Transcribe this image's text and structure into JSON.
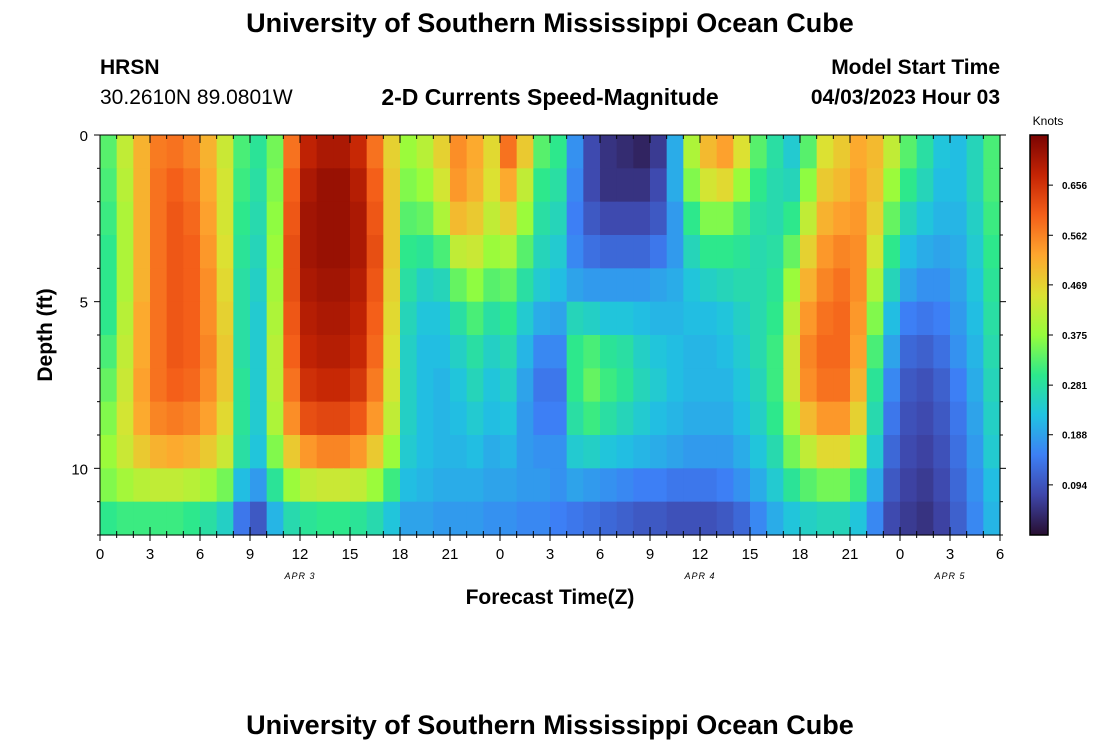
{
  "page": {
    "title": "University of Southern Mississippi Ocean Cube",
    "footer_title": "University of Southern Mississippi Ocean Cube"
  },
  "header": {
    "station": "HRSN",
    "coords": "30.2610N  89.0801W",
    "subtitle": "2-D Currents Speed-Magnitude",
    "model_label": "Model Start Time",
    "model_time": "04/03/2023 Hour 03"
  },
  "chart_data": {
    "type": "heatmap",
    "title": "2-D Currents Speed-Magnitude",
    "xlabel": "Forecast Time(Z)",
    "ylabel": "Depth (ft)",
    "x_range_hours": [
      0,
      54
    ],
    "y_range_ft": [
      0,
      12
    ],
    "x_ticks": [
      {
        "h": 0,
        "label": "0"
      },
      {
        "h": 3,
        "label": "3"
      },
      {
        "h": 6,
        "label": "6"
      },
      {
        "h": 9,
        "label": "9"
      },
      {
        "h": 12,
        "label": "12"
      },
      {
        "h": 15,
        "label": "15"
      },
      {
        "h": 18,
        "label": "18"
      },
      {
        "h": 21,
        "label": "21"
      },
      {
        "h": 24,
        "label": "0"
      },
      {
        "h": 27,
        "label": "3"
      },
      {
        "h": 30,
        "label": "6"
      },
      {
        "h": 33,
        "label": "9"
      },
      {
        "h": 36,
        "label": "12"
      },
      {
        "h": 39,
        "label": "15"
      },
      {
        "h": 42,
        "label": "18"
      },
      {
        "h": 45,
        "label": "21"
      },
      {
        "h": 48,
        "label": "0"
      },
      {
        "h": 51,
        "label": "3"
      },
      {
        "h": 54,
        "label": "6"
      }
    ],
    "y_ticks": [
      {
        "ft": 0,
        "label": "0"
      },
      {
        "ft": 5,
        "label": "5"
      },
      {
        "ft": 10,
        "label": "10"
      }
    ],
    "date_labels": [
      {
        "h": 12,
        "label": "APR 3"
      },
      {
        "h": 36,
        "label": "APR 4"
      },
      {
        "h": 51,
        "label": "APR 5"
      }
    ],
    "colorbar": {
      "unit": "Knots",
      "min": 0.0,
      "max": 0.75,
      "ticks": [
        0.656,
        0.562,
        0.469,
        0.375,
        0.281,
        0.188,
        0.094
      ]
    },
    "time_bins_hours": [
      0.5,
      1.5,
      2.5,
      3.5,
      4.5,
      5.5,
      6.5,
      7.5,
      8.5,
      9.5,
      10.5,
      11.5,
      12.5,
      13.5,
      14.5,
      15.5,
      16.5,
      17.5,
      18.5,
      19.5,
      20.5,
      21.5,
      22.5,
      23.5,
      24.5,
      25.5,
      26.5,
      27.5,
      28.5,
      29.5,
      30.5,
      31.5,
      32.5,
      33.5,
      34.5,
      35.5,
      36.5,
      37.5,
      38.5,
      39.5,
      40.5,
      41.5,
      42.5,
      43.5,
      44.5,
      45.5,
      46.5,
      47.5,
      48.5,
      49.5,
      50.5,
      51.5,
      52.5,
      53.5
    ],
    "depth_bins_ft": [
      0.5,
      1.5,
      2.5,
      3.5,
      4.5,
      5.5,
      6.5,
      7.5,
      8.5,
      9.5,
      10.5,
      11.5
    ],
    "speed_knots": [
      [
        0.33,
        0.42,
        0.51,
        0.57,
        0.58,
        0.56,
        0.51,
        0.43,
        0.32,
        0.29,
        0.35,
        0.58,
        0.68,
        0.7,
        0.7,
        0.67,
        0.58,
        0.47,
        0.38,
        0.41,
        0.47,
        0.55,
        0.52,
        0.46,
        0.58,
        0.48,
        0.33,
        0.3,
        0.17,
        0.08,
        0.05,
        0.04,
        0.03,
        0.06,
        0.2,
        0.4,
        0.5,
        0.53,
        0.45,
        0.33,
        0.28,
        0.24,
        0.33,
        0.45,
        0.48,
        0.52,
        0.5,
        0.42,
        0.33,
        0.28,
        0.23,
        0.22,
        0.26,
        0.32
      ],
      [
        0.32,
        0.41,
        0.51,
        0.58,
        0.6,
        0.58,
        0.52,
        0.44,
        0.31,
        0.28,
        0.36,
        0.6,
        0.7,
        0.72,
        0.72,
        0.69,
        0.6,
        0.48,
        0.36,
        0.38,
        0.44,
        0.54,
        0.51,
        0.45,
        0.52,
        0.42,
        0.3,
        0.28,
        0.16,
        0.08,
        0.05,
        0.05,
        0.05,
        0.08,
        0.2,
        0.36,
        0.44,
        0.46,
        0.38,
        0.3,
        0.27,
        0.26,
        0.37,
        0.48,
        0.5,
        0.53,
        0.49,
        0.38,
        0.3,
        0.26,
        0.22,
        0.22,
        0.26,
        0.32
      ],
      [
        0.31,
        0.4,
        0.51,
        0.58,
        0.61,
        0.59,
        0.53,
        0.44,
        0.3,
        0.27,
        0.37,
        0.61,
        0.71,
        0.72,
        0.72,
        0.7,
        0.61,
        0.48,
        0.33,
        0.34,
        0.4,
        0.5,
        0.48,
        0.42,
        0.47,
        0.38,
        0.28,
        0.26,
        0.15,
        0.1,
        0.08,
        0.08,
        0.08,
        0.1,
        0.18,
        0.3,
        0.36,
        0.36,
        0.32,
        0.28,
        0.27,
        0.3,
        0.42,
        0.51,
        0.53,
        0.54,
        0.47,
        0.34,
        0.26,
        0.23,
        0.21,
        0.21,
        0.25,
        0.31
      ],
      [
        0.3,
        0.4,
        0.51,
        0.58,
        0.61,
        0.6,
        0.54,
        0.45,
        0.29,
        0.26,
        0.38,
        0.62,
        0.71,
        0.72,
        0.72,
        0.7,
        0.62,
        0.48,
        0.3,
        0.29,
        0.32,
        0.42,
        0.43,
        0.38,
        0.4,
        0.33,
        0.26,
        0.24,
        0.16,
        0.13,
        0.12,
        0.12,
        0.12,
        0.14,
        0.18,
        0.26,
        0.3,
        0.3,
        0.29,
        0.27,
        0.28,
        0.34,
        0.47,
        0.54,
        0.56,
        0.55,
        0.44,
        0.3,
        0.22,
        0.2,
        0.19,
        0.2,
        0.24,
        0.3
      ],
      [
        0.3,
        0.4,
        0.51,
        0.58,
        0.61,
        0.6,
        0.55,
        0.46,
        0.28,
        0.25,
        0.39,
        0.62,
        0.7,
        0.71,
        0.71,
        0.69,
        0.61,
        0.47,
        0.28,
        0.25,
        0.26,
        0.34,
        0.37,
        0.33,
        0.34,
        0.28,
        0.24,
        0.22,
        0.19,
        0.18,
        0.18,
        0.18,
        0.18,
        0.19,
        0.2,
        0.23,
        0.25,
        0.26,
        0.27,
        0.27,
        0.29,
        0.38,
        0.51,
        0.56,
        0.58,
        0.55,
        0.4,
        0.26,
        0.19,
        0.17,
        0.17,
        0.19,
        0.23,
        0.29
      ],
      [
        0.3,
        0.41,
        0.52,
        0.58,
        0.61,
        0.6,
        0.55,
        0.47,
        0.28,
        0.24,
        0.4,
        0.61,
        0.69,
        0.7,
        0.7,
        0.68,
        0.6,
        0.46,
        0.26,
        0.23,
        0.23,
        0.28,
        0.32,
        0.28,
        0.3,
        0.24,
        0.2,
        0.19,
        0.26,
        0.25,
        0.23,
        0.23,
        0.22,
        0.21,
        0.21,
        0.22,
        0.22,
        0.23,
        0.25,
        0.27,
        0.3,
        0.41,
        0.54,
        0.58,
        0.59,
        0.54,
        0.36,
        0.22,
        0.15,
        0.14,
        0.15,
        0.18,
        0.22,
        0.28
      ],
      [
        0.32,
        0.42,
        0.52,
        0.58,
        0.61,
        0.6,
        0.56,
        0.48,
        0.28,
        0.24,
        0.41,
        0.6,
        0.68,
        0.69,
        0.69,
        0.67,
        0.59,
        0.45,
        0.25,
        0.22,
        0.22,
        0.25,
        0.28,
        0.25,
        0.27,
        0.21,
        0.16,
        0.16,
        0.3,
        0.32,
        0.29,
        0.28,
        0.25,
        0.23,
        0.22,
        0.21,
        0.21,
        0.22,
        0.24,
        0.27,
        0.31,
        0.43,
        0.56,
        0.59,
        0.59,
        0.53,
        0.32,
        0.19,
        0.12,
        0.11,
        0.13,
        0.17,
        0.21,
        0.27
      ],
      [
        0.34,
        0.43,
        0.53,
        0.58,
        0.6,
        0.59,
        0.55,
        0.48,
        0.29,
        0.24,
        0.41,
        0.58,
        0.66,
        0.67,
        0.67,
        0.65,
        0.57,
        0.44,
        0.25,
        0.22,
        0.21,
        0.23,
        0.26,
        0.23,
        0.25,
        0.19,
        0.14,
        0.14,
        0.3,
        0.34,
        0.31,
        0.29,
        0.26,
        0.24,
        0.22,
        0.21,
        0.21,
        0.21,
        0.23,
        0.26,
        0.31,
        0.43,
        0.55,
        0.58,
        0.58,
        0.51,
        0.29,
        0.16,
        0.1,
        0.09,
        0.11,
        0.15,
        0.2,
        0.26
      ],
      [
        0.36,
        0.44,
        0.52,
        0.56,
        0.57,
        0.56,
        0.53,
        0.46,
        0.29,
        0.24,
        0.4,
        0.55,
        0.62,
        0.63,
        0.63,
        0.61,
        0.54,
        0.42,
        0.25,
        0.22,
        0.21,
        0.22,
        0.24,
        0.22,
        0.23,
        0.18,
        0.15,
        0.15,
        0.28,
        0.31,
        0.28,
        0.26,
        0.24,
        0.22,
        0.21,
        0.2,
        0.2,
        0.2,
        0.22,
        0.25,
        0.3,
        0.4,
        0.5,
        0.54,
        0.54,
        0.47,
        0.27,
        0.14,
        0.09,
        0.08,
        0.1,
        0.14,
        0.19,
        0.25
      ],
      [
        0.38,
        0.43,
        0.48,
        0.51,
        0.52,
        0.51,
        0.48,
        0.43,
        0.28,
        0.23,
        0.36,
        0.48,
        0.54,
        0.56,
        0.56,
        0.54,
        0.48,
        0.38,
        0.24,
        0.22,
        0.21,
        0.21,
        0.22,
        0.2,
        0.21,
        0.18,
        0.17,
        0.17,
        0.24,
        0.25,
        0.23,
        0.22,
        0.21,
        0.2,
        0.19,
        0.18,
        0.18,
        0.18,
        0.2,
        0.23,
        0.27,
        0.35,
        0.42,
        0.46,
        0.46,
        0.4,
        0.24,
        0.12,
        0.08,
        0.07,
        0.09,
        0.13,
        0.18,
        0.24
      ],
      [
        0.36,
        0.39,
        0.41,
        0.42,
        0.42,
        0.41,
        0.39,
        0.35,
        0.22,
        0.18,
        0.29,
        0.38,
        0.42,
        0.43,
        0.43,
        0.42,
        0.38,
        0.31,
        0.22,
        0.21,
        0.2,
        0.2,
        0.2,
        0.19,
        0.19,
        0.18,
        0.18,
        0.17,
        0.19,
        0.18,
        0.17,
        0.16,
        0.15,
        0.15,
        0.14,
        0.14,
        0.14,
        0.15,
        0.17,
        0.2,
        0.24,
        0.29,
        0.33,
        0.35,
        0.35,
        0.31,
        0.2,
        0.1,
        0.07,
        0.06,
        0.08,
        0.12,
        0.17,
        0.22
      ],
      [
        0.3,
        0.31,
        0.31,
        0.31,
        0.31,
        0.3,
        0.28,
        0.25,
        0.14,
        0.1,
        0.21,
        0.27,
        0.29,
        0.3,
        0.3,
        0.29,
        0.27,
        0.23,
        0.19,
        0.19,
        0.18,
        0.18,
        0.18,
        0.17,
        0.17,
        0.16,
        0.16,
        0.15,
        0.14,
        0.13,
        0.12,
        0.11,
        0.1,
        0.1,
        0.09,
        0.09,
        0.09,
        0.1,
        0.12,
        0.16,
        0.2,
        0.23,
        0.25,
        0.26,
        0.26,
        0.23,
        0.16,
        0.08,
        0.06,
        0.05,
        0.07,
        0.11,
        0.16,
        0.21
      ]
    ]
  }
}
